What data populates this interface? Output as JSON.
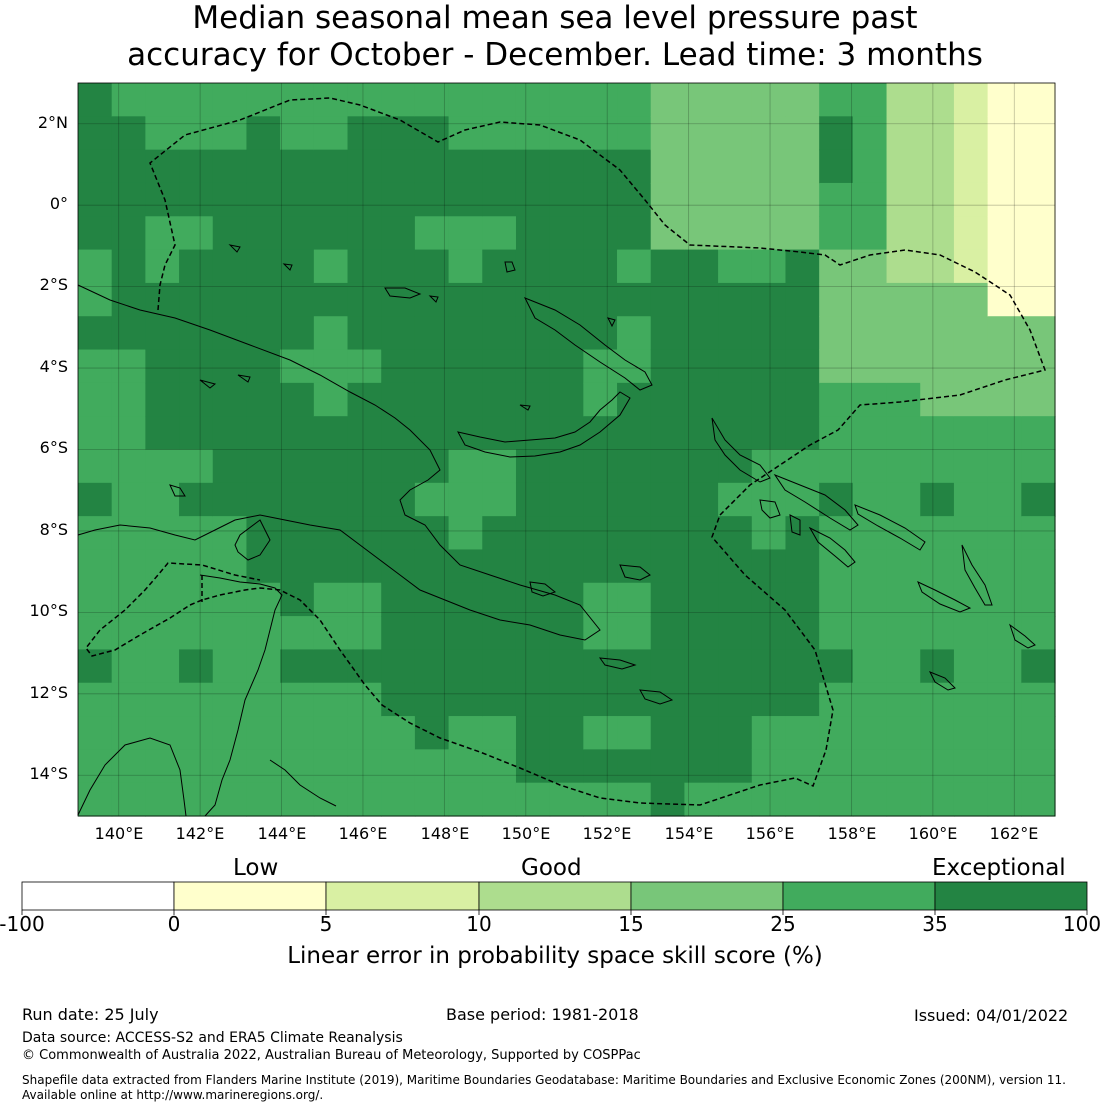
{
  "title": {
    "line1": "Median seasonal mean sea level pressure past",
    "line2": "accuracy for October - December. Lead time: 3 months"
  },
  "map": {
    "lat_labels": [
      "2°N",
      "0°",
      "2°S",
      "4°S",
      "6°S",
      "8°S",
      "10°S",
      "12°S",
      "14°S"
    ],
    "lon_labels": [
      "140°E",
      "142°E",
      "144°E",
      "146°E",
      "148°E",
      "150°E",
      "152°E",
      "154°E",
      "156°E",
      "158°E",
      "160°E",
      "162°E"
    ],
    "extent": {
      "lon": [
        139.0,
        163.0
      ],
      "lat": [
        -15.0,
        3.0
      ]
    },
    "grid_lines": true,
    "boundary_style": "dashed",
    "coastline_color": "#000000"
  },
  "legend": {
    "categories": [
      "Low",
      "Good",
      "Exceptional"
    ],
    "ticks": [
      "-100",
      "0",
      "5",
      "10",
      "15",
      "25",
      "35",
      "100"
    ],
    "bins": [
      {
        "from": -100,
        "to": 0,
        "color": "#ffffff"
      },
      {
        "from": 0,
        "to": 5,
        "color": "#ffffcc"
      },
      {
        "from": 5,
        "to": 10,
        "color": "#d9f0a3"
      },
      {
        "from": 10,
        "to": 15,
        "color": "#addd8e"
      },
      {
        "from": 15,
        "to": 25,
        "color": "#78c679"
      },
      {
        "from": 25,
        "to": 35,
        "color": "#41ab5d"
      },
      {
        "from": 35,
        "to": 100,
        "color": "#238443"
      }
    ],
    "axis_label": "Linear error in probability space skill score (%)"
  },
  "footer": {
    "run_date": "Run date: 25 July",
    "base_period": "Base period: 1981-2018",
    "issued": "Issued: 04/01/2022",
    "data_source": "Data source: ACCESS-S2 and ERA5 Climate Reanalysis",
    "copyright": "© Commonwealth of Australia 2022, Australian Bureau of Meteorology, Supported by COSPPac",
    "shapefile_line1": "Shapefile data extracted from Flanders Marine Institute (2019), Maritime Boundaries Geodatabase: Maritime Boundaries and Exclusive Economic Zones (200NM), version 11.",
    "shapefile_line2": "Available online at http://www.marineregions.org/."
  }
}
